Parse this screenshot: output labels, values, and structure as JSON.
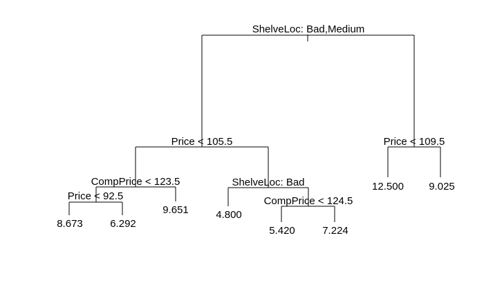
{
  "tree": {
    "splits": {
      "root": "ShelveLoc: Bad,Medium",
      "left": "Price < 105.5",
      "right": "Price < 109.5",
      "left_left": "CompPrice < 123.5",
      "left_right": "ShelveLoc: Bad",
      "left_left_left": "Price < 92.5",
      "left_right_right": "CompPrice < 124.5"
    },
    "leaves": {
      "leaf_1": "8.673",
      "leaf_2": "6.292",
      "leaf_3": "9.651",
      "leaf_4": "4.800",
      "leaf_5": "5.420",
      "leaf_6": "7.224",
      "leaf_7": "12.500",
      "leaf_8": "9.025"
    }
  }
}
